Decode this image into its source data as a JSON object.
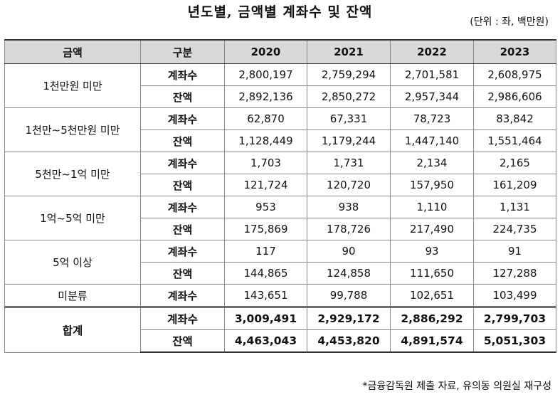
{
  "title": "년도별, 금액별 계좌수 및 잔액",
  "unit_note": "(단위 : 좌, 백만원)",
  "table": {
    "headers": [
      "금액",
      "구분",
      "2020",
      "2021",
      "2022",
      "2023"
    ],
    "groups": [
      {
        "category": "1천만원 미만",
        "rows": [
          {
            "label": "계좌수",
            "values": [
              "2,800,197",
              "2,759,294",
              "2,701,581",
              "2,608,975"
            ]
          },
          {
            "label": "잔액",
            "values": [
              "2,892,136",
              "2,850,272",
              "2,957,344",
              "2,986,606"
            ]
          }
        ]
      },
      {
        "category": "1천만~5천만원 미만",
        "rows": [
          {
            "label": "계좌수",
            "values": [
              "62,870",
              "67,331",
              "78,723",
              "83,842"
            ]
          },
          {
            "label": "잔액",
            "values": [
              "1,128,449",
              "1,179,244",
              "1,447,140",
              "1,551,464"
            ]
          }
        ]
      },
      {
        "category": "5천만~1억 미만",
        "rows": [
          {
            "label": "계좌수",
            "values": [
              "1,703",
              "1,731",
              "2,134",
              "2,165"
            ]
          },
          {
            "label": "잔액",
            "values": [
              "121,724",
              "120,720",
              "157,950",
              "161,209"
            ]
          }
        ]
      },
      {
        "category": "1억~5억 미만",
        "rows": [
          {
            "label": "계좌수",
            "values": [
              "953",
              "938",
              "1,110",
              "1,131"
            ]
          },
          {
            "label": "잔액",
            "values": [
              "175,869",
              "178,726",
              "217,490",
              "224,735"
            ]
          }
        ]
      },
      {
        "category": "5억 이상",
        "rows": [
          {
            "label": "계좌수",
            "values": [
              "117",
              "90",
              "93",
              "91"
            ]
          },
          {
            "label": "잔액",
            "values": [
              "144,865",
              "124,858",
              "111,650",
              "127,288"
            ]
          }
        ]
      },
      {
        "category": "미분류",
        "rows": [
          {
            "label": "계좌수",
            "values": [
              "143,651",
              "99,788",
              "102,651",
              "103,499"
            ]
          }
        ]
      },
      {
        "category": "합계",
        "total": true,
        "rows": [
          {
            "label": "계좌수",
            "values": [
              "3,009,491",
              "2,929,172",
              "2,886,292",
              "2,799,703"
            ]
          },
          {
            "label": "잔액",
            "values": [
              "4,463,043",
              "4,453,820",
              "4,891,574",
              "5,051,303"
            ]
          }
        ]
      }
    ]
  },
  "source": "*금융감독원 제출 자료, 유의동 의원실 재구성"
}
